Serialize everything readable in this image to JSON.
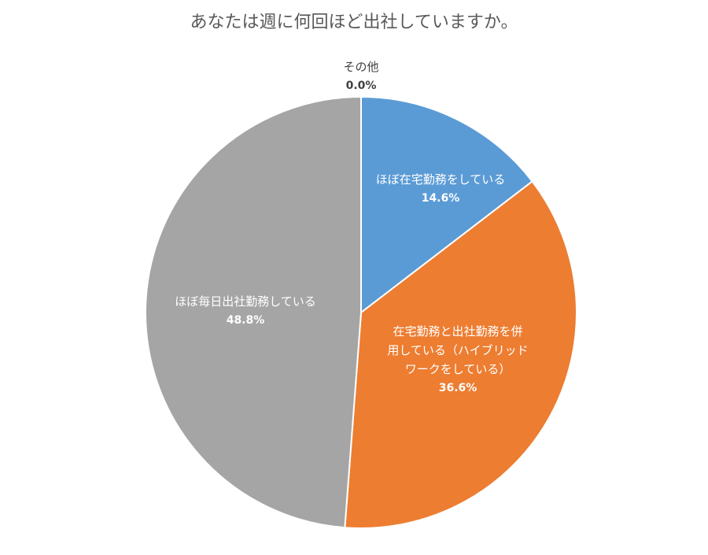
{
  "chart_data": {
    "type": "pie",
    "title": "あなたは週に何回ほど出社していますか。",
    "start_angle": "top",
    "direction": "clockwise",
    "slices": [
      {
        "label": "ほぼ在宅勤務をしている",
        "value": 14.6,
        "value_label": "14.6%",
        "color": "#5B9BD5"
      },
      {
        "label_lines": [
          "在宅勤務と出社勤務を併",
          "用している（ハイブリッド",
          "ワークをしている）"
        ],
        "label": "在宅勤務と出社勤務を併用している（ハイブリッドワークをしている）",
        "value": 36.6,
        "value_label": "36.6%",
        "color": "#ED7D31"
      },
      {
        "label": "ほぼ毎日出社勤務している",
        "value": 48.8,
        "value_label": "48.8%",
        "color": "#A5A5A5"
      },
      {
        "label": "その他",
        "value": 0.0,
        "value_label": "0.0%",
        "color": "#FFC000"
      }
    ]
  }
}
